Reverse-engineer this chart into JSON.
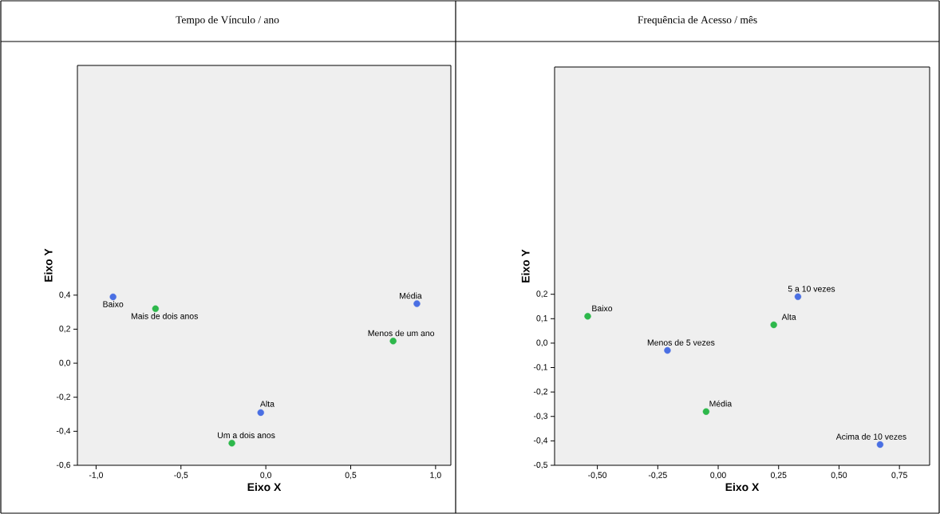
{
  "chart_data": [
    {
      "type": "scatter",
      "title": "Tempo de Vínculo / ano",
      "xlabel": "Eixo X",
      "ylabel": "Eixo Y",
      "marker": "circle",
      "xlim": [
        -1.11,
        1.09
      ],
      "ylim": [
        -0.6,
        1.75
      ],
      "xticks": [
        {
          "value": -1.0,
          "label": "-1,0"
        },
        {
          "value": -0.5,
          "label": "-0,5"
        },
        {
          "value": 0.0,
          "label": "0,0"
        },
        {
          "value": 0.5,
          "label": "0,5"
        },
        {
          "value": 1.0,
          "label": "1,0"
        }
      ],
      "yticks": [
        {
          "value": -0.6,
          "label": "-0,6"
        },
        {
          "value": -0.4,
          "label": "-0,4"
        },
        {
          "value": -0.2,
          "label": "-0,2"
        },
        {
          "value": 0.0,
          "label": "0,0"
        },
        {
          "value": 0.2,
          "label": "0,2"
        },
        {
          "value": 0.4,
          "label": "0,4"
        }
      ],
      "series": [
        {
          "color": "#4a6fe3",
          "x": [
            -0.9,
            0.89,
            -0.03
          ],
          "values": [
            0.39,
            0.35,
            -0.29
          ]
        },
        {
          "color": "#2db84b",
          "x": [
            -0.65,
            0.75,
            -0.2
          ],
          "values": [
            0.32,
            0.13,
            -0.47
          ]
        }
      ],
      "annotations": [
        {
          "text": "Baixo",
          "x": -0.9,
          "y": 0.39
        },
        {
          "text": "Mais de dois anos",
          "x": -0.65,
          "y": 0.32
        },
        {
          "text": "Média",
          "x": 0.89,
          "y": 0.35
        },
        {
          "text": "Menos de um ano",
          "x": 0.75,
          "y": 0.13
        },
        {
          "text": "Alta",
          "x": -0.03,
          "y": -0.29
        },
        {
          "text": "Um a dois anos",
          "x": -0.2,
          "y": -0.47
        }
      ]
    },
    {
      "type": "scatter",
      "title": "Frequência de Acesso / mês",
      "xlabel": "Eixo X",
      "ylabel": "Eixo Y",
      "marker": "circle",
      "xlim": [
        -0.677,
        0.875
      ],
      "ylim": [
        -0.5,
        1.13
      ],
      "xticks": [
        {
          "value": -0.5,
          "label": "-0,50"
        },
        {
          "value": -0.25,
          "label": "-0,25"
        },
        {
          "value": 0.0,
          "label": "0,00"
        },
        {
          "value": 0.25,
          "label": "0,25"
        },
        {
          "value": 0.5,
          "label": "0,50"
        },
        {
          "value": 0.75,
          "label": "0,75"
        }
      ],
      "yticks": [
        {
          "value": -0.5,
          "label": "-0,5"
        },
        {
          "value": -0.4,
          "label": "-0,4"
        },
        {
          "value": -0.3,
          "label": "-0,3"
        },
        {
          "value": -0.2,
          "label": "-0,2"
        },
        {
          "value": -0.1,
          "label": "-0,1"
        },
        {
          "value": 0.0,
          "label": "0,0"
        },
        {
          "value": 0.1,
          "label": "0,1"
        },
        {
          "value": 0.2,
          "label": "0,2"
        }
      ],
      "series": [
        {
          "color": "#4a6fe3",
          "x": [
            -0.21,
            0.33,
            0.67
          ],
          "values": [
            -0.03,
            0.19,
            -0.415
          ]
        },
        {
          "color": "#2db84b",
          "x": [
            -0.54,
            0.23,
            -0.05
          ],
          "values": [
            0.11,
            0.075,
            -0.28
          ]
        }
      ],
      "annotations": [
        {
          "text": "Baixo",
          "x": -0.54,
          "y": 0.11
        },
        {
          "text": "Menos de 5 vezes",
          "x": -0.21,
          "y": -0.03
        },
        {
          "text": "5 a 10 vezes",
          "x": 0.33,
          "y": 0.19
        },
        {
          "text": "Alta",
          "x": 0.23,
          "y": 0.075
        },
        {
          "text": "Média",
          "x": -0.05,
          "y": -0.28
        },
        {
          "text": "Acima de 10  vezes",
          "x": 0.67,
          "y": -0.415
        }
      ]
    }
  ]
}
